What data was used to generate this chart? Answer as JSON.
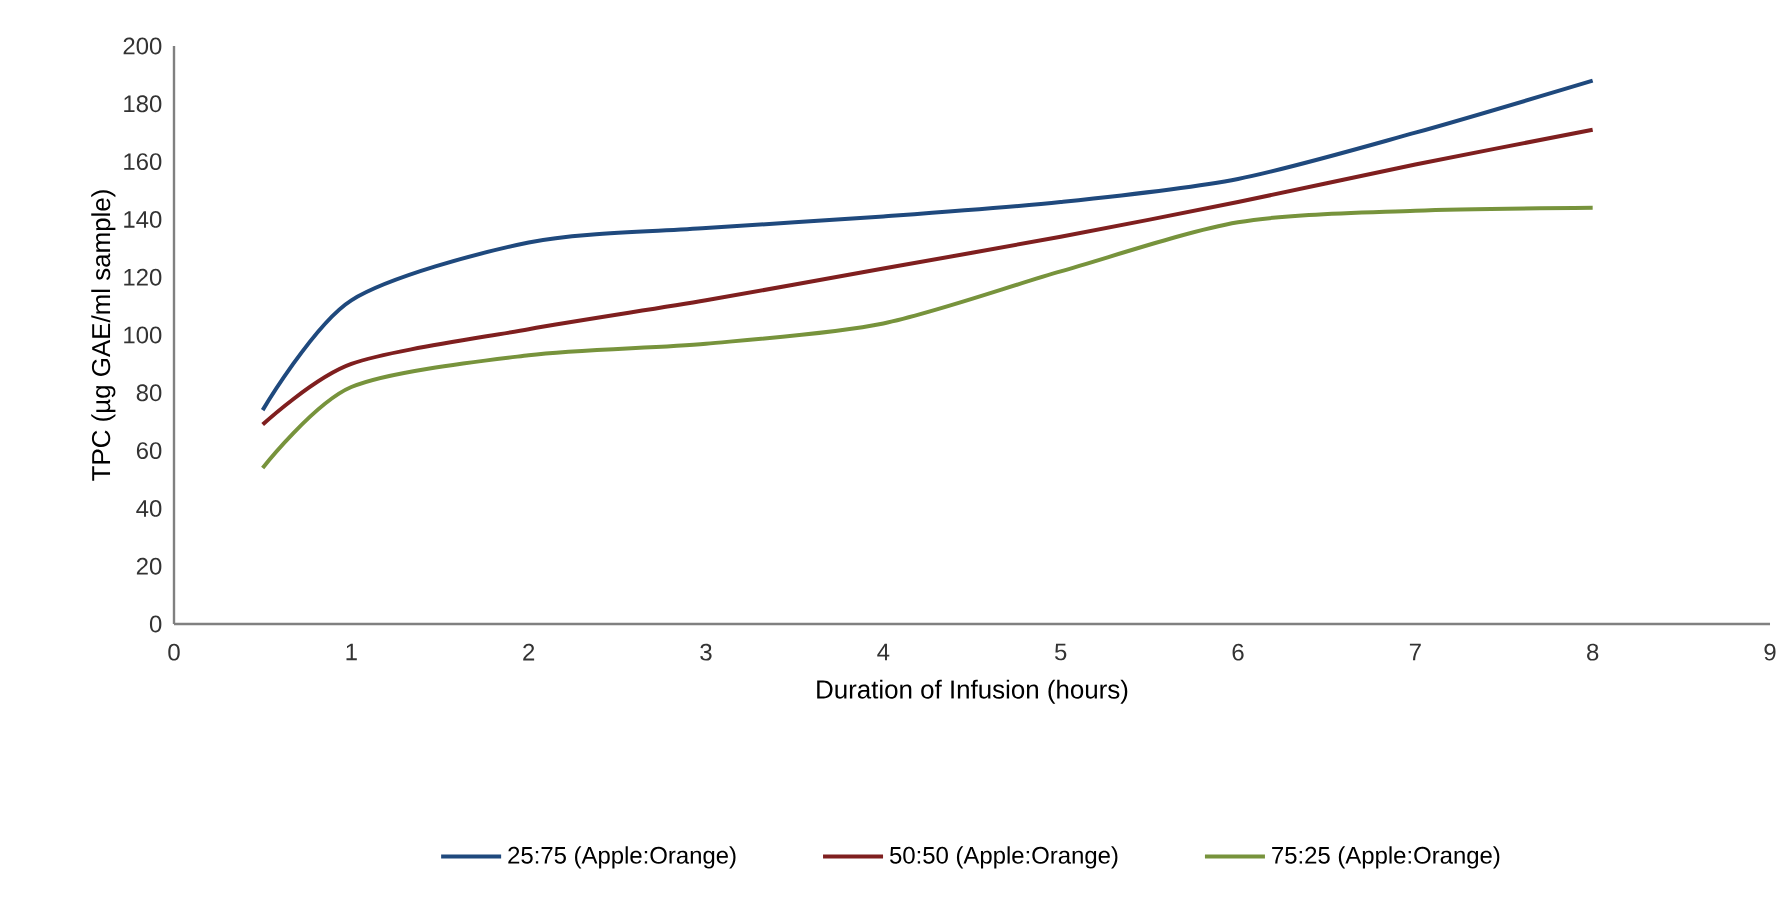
{
  "chart_data": {
    "type": "line",
    "xlabel": "Duration of Infusion (hours)",
    "ylabel": "TPC (µg GAE/ml sample)",
    "x": [
      0.5,
      1,
      2,
      3,
      4,
      5,
      6,
      7,
      8
    ],
    "series": [
      {
        "name": "25:75 (Apple:Orange)",
        "color": "#1f497d",
        "values": [
          74,
          112,
          132,
          137,
          141,
          146,
          154,
          170,
          188
        ]
      },
      {
        "name": "50:50 (Apple:Orange)",
        "color": "#7f1f1f",
        "values": [
          69,
          90,
          102,
          112,
          123,
          134,
          146,
          159,
          171
        ]
      },
      {
        "name": "75:25 (Apple:Orange)",
        "color": "#77933c",
        "values": [
          54,
          82,
          93,
          97,
          104,
          122,
          139,
          143,
          144
        ]
      }
    ],
    "xlim": [
      0,
      9
    ],
    "xticks": [
      0,
      1,
      2,
      3,
      4,
      5,
      6,
      7,
      8,
      9
    ],
    "ylim": [
      0,
      200
    ],
    "yticks": [
      0,
      20,
      40,
      60,
      80,
      100,
      120,
      140,
      160,
      180,
      200
    ],
    "legend": "bottom",
    "grid": false,
    "marker": "none",
    "line_style": "solid"
  }
}
